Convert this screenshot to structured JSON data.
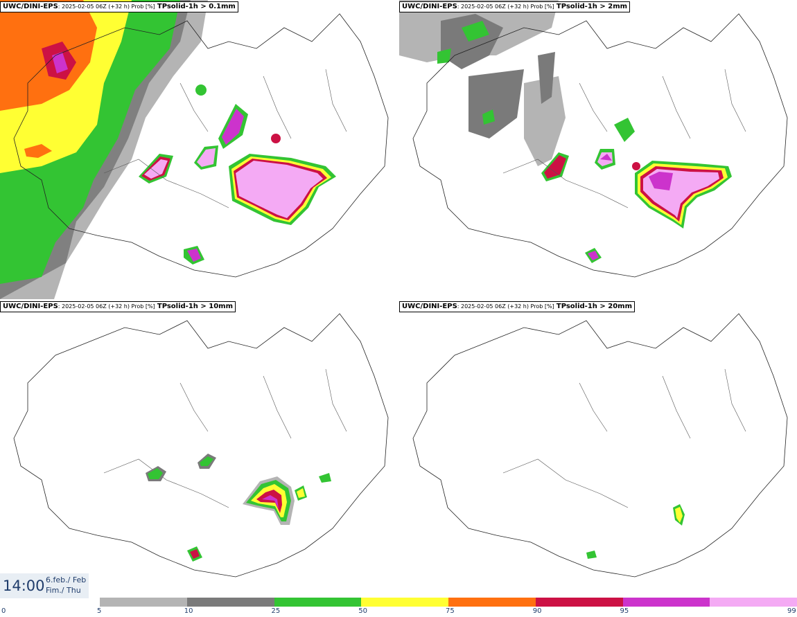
{
  "panels": [
    {
      "source": "UWC/DINI-EPS",
      "meta": ": 2025-02-05 06Z (+32 h) Prob [%]",
      "variable": "TPsolid-1h > 0.1mm"
    },
    {
      "source": "UWC/DINI-EPS",
      "meta": ": 2025-02-05 06Z (+32 h) Prob [%]",
      "variable": "TPsolid-1h > 2mm"
    },
    {
      "source": "UWC/DINI-EPS",
      "meta": ": 2025-02-05 06Z (+32 h) Prob [%]",
      "variable": "TPsolid-1h > 10mm"
    },
    {
      "source": "UWC/DINI-EPS",
      "meta": ": 2025-02-05 06Z (+32 h) Prob [%]",
      "variable": "TPsolid-1h > 20mm"
    }
  ],
  "valid_time": {
    "time": "14:00",
    "date_line1": "6.feb./ Feb",
    "date_line2": "Fim./ Thu"
  },
  "colorbar": {
    "ticks": [
      "0",
      "5",
      "10",
      "25",
      "50",
      "75",
      "90",
      "95",
      "99"
    ],
    "colors": [
      "#b4b4b4",
      "#7a7a7a",
      "#33c433",
      "#ffff33",
      "#ff7010",
      "#cc1144",
      "#cc33cc",
      "#f4aaf4"
    ]
  },
  "map_colors": {
    "p5": "#b4b4b4",
    "p10": "#7a7a7a",
    "p25": "#33c433",
    "p50": "#ffff33",
    "p75": "#ff7010",
    "p90": "#cc1144",
    "p95": "#cc33cc",
    "p99": "#f4aaf4"
  }
}
